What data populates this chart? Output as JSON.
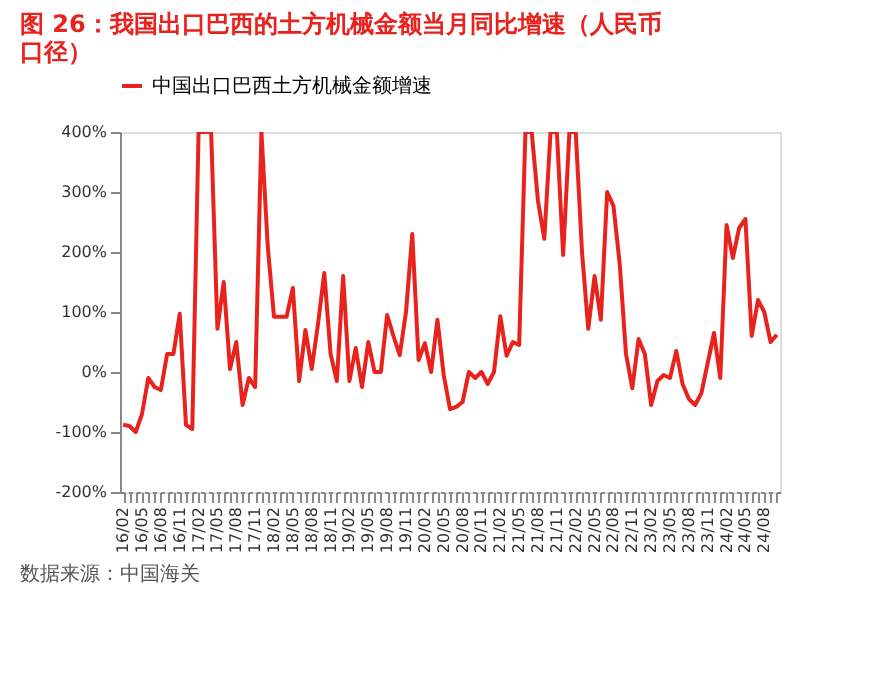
{
  "chart_data": {
    "type": "line",
    "title": "图 26：我国出口巴西的土方机械金额当月同比增速（人民币口径）",
    "categories": [
      "16/02",
      null,
      null,
      "16/05",
      null,
      null,
      "16/08",
      null,
      null,
      "16/11",
      null,
      null,
      "17/02",
      null,
      null,
      "17/05",
      null,
      null,
      "17/08",
      null,
      null,
      "17/11",
      null,
      null,
      "18/02",
      null,
      null,
      "18/05",
      null,
      null,
      "18/08",
      null,
      null,
      "18/11",
      null,
      null,
      "19/02",
      null,
      null,
      "19/05",
      null,
      null,
      "19/08",
      null,
      null,
      "19/11",
      null,
      null,
      "20/02",
      null,
      null,
      "20/05",
      null,
      null,
      "20/08",
      null,
      null,
      "20/11",
      null,
      null,
      "21/02",
      null,
      null,
      "21/05",
      null,
      null,
      "21/08",
      null,
      null,
      "21/11",
      null,
      null,
      "22/02",
      null,
      null,
      "22/05",
      null,
      null,
      "22/08",
      null,
      null,
      "22/11",
      null,
      null,
      "23/02",
      null,
      null,
      "23/05",
      null,
      null,
      "23/08",
      null,
      null,
      "23/11",
      null,
      null,
      "24/02",
      null,
      null,
      "24/05",
      null,
      null,
      "24/08",
      null,
      null
    ],
    "series": [
      {
        "name": "中国出口巴西土方机械金额增速",
        "color": "#e8221c",
        "values": [
          -88,
          -90,
          -100,
          -70,
          -10,
          -25,
          -30,
          30,
          30,
          97,
          -88,
          -95,
          400,
          400,
          400,
          72,
          150,
          5,
          50,
          -55,
          -10,
          -25,
          400,
          210,
          92,
          92,
          92,
          140,
          -15,
          70,
          5,
          80,
          165,
          30,
          -15,
          160,
          -15,
          40,
          -25,
          50,
          0,
          0,
          95,
          60,
          28,
          100,
          230,
          20,
          48,
          0,
          87,
          -5,
          -62,
          -58,
          -50,
          0,
          -10,
          0,
          -20,
          0,
          93,
          27,
          50,
          45,
          400,
          400,
          285,
          222,
          400,
          400,
          195,
          400,
          400,
          200,
          72,
          160,
          87,
          300,
          277,
          180,
          30,
          -27,
          55,
          30,
          -55,
          -15,
          -5,
          -10,
          35,
          -20,
          -45,
          -55,
          -35,
          15,
          65,
          -10,
          245,
          190,
          240,
          255,
          60,
          120,
          100,
          50,
          62
        ]
      }
    ],
    "ylim": [
      -200,
      400
    ],
    "yticks": [
      {
        "value": -200,
        "label": "-200%"
      },
      {
        "value": -100,
        "label": "-100%"
      },
      {
        "value": 0,
        "label": "0%"
      },
      {
        "value": 100,
        "label": "100%"
      },
      {
        "value": 200,
        "label": "200%"
      },
      {
        "value": 300,
        "label": "300%"
      },
      {
        "value": 400,
        "label": "400%"
      }
    ],
    "legend": "top",
    "annotations": [
      "数据来源：中国海关"
    ]
  }
}
